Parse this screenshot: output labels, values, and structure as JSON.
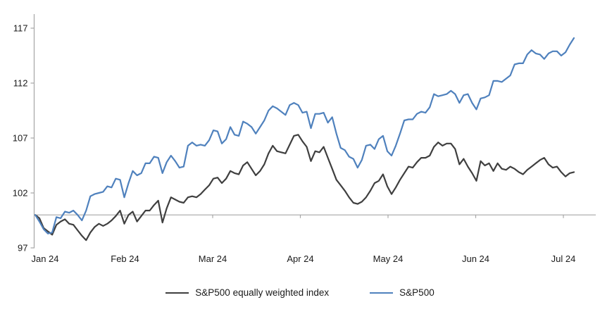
{
  "chart_data": {
    "type": "line",
    "title": "",
    "xlabel": "",
    "ylabel": "",
    "x_tick_labels": [
      "Jan 24",
      "Feb 24",
      "Mar 24",
      "Apr 24",
      "May 24",
      "Jun 24",
      "Jul 24"
    ],
    "y_ticks": [
      97,
      102,
      107,
      112,
      117
    ],
    "ylim": [
      97,
      118
    ],
    "baseline_value": 100,
    "grid": "none (single horizontal axis line at value 100 with month tick marks)",
    "legend_position": "bottom-center",
    "x_description": "Daily values indexed to 100 at start of period, Jan 2024 through early Jul 2024",
    "series": [
      {
        "name": "S&P500 equally weighted index",
        "color": "#3f3f3f",
        "values": [
          100.0,
          99.7,
          98.8,
          98.5,
          98.2,
          99.1,
          99.4,
          99.6,
          99.2,
          99.1,
          98.6,
          98.1,
          97.7,
          98.4,
          98.9,
          99.2,
          99.0,
          99.2,
          99.5,
          99.9,
          100.4,
          99.2,
          100.0,
          100.3,
          99.4,
          99.9,
          100.4,
          100.4,
          100.9,
          101.3,
          99.3,
          100.6,
          101.6,
          101.4,
          101.2,
          101.1,
          101.6,
          101.7,
          101.6,
          101.9,
          102.3,
          102.7,
          103.3,
          103.4,
          102.9,
          103.3,
          104.0,
          103.8,
          103.7,
          104.5,
          104.8,
          104.2,
          103.6,
          104.0,
          104.6,
          105.6,
          106.3,
          105.8,
          105.7,
          105.6,
          106.4,
          107.2,
          107.3,
          106.7,
          106.2,
          104.9,
          105.8,
          105.7,
          106.2,
          105.2,
          104.2,
          103.2,
          102.7,
          102.2,
          101.6,
          101.1,
          101.0,
          101.2,
          101.6,
          102.2,
          102.9,
          103.1,
          103.7,
          102.6,
          101.9,
          102.5,
          103.2,
          103.8,
          104.4,
          104.3,
          104.8,
          105.2,
          105.2,
          105.4,
          106.2,
          106.6,
          106.3,
          106.5,
          106.5,
          106.0,
          104.6,
          105.1,
          104.4,
          103.8,
          103.1,
          104.9,
          104.5,
          104.7,
          104.0,
          104.7,
          104.2,
          104.1,
          104.4,
          104.2,
          103.9,
          103.7,
          104.1,
          104.4,
          104.7,
          105.0,
          105.2,
          104.6,
          104.3,
          104.4,
          103.9,
          103.5,
          103.8,
          103.9
        ]
      },
      {
        "name": "S&P500",
        "color": "#4f81bd",
        "values": [
          100.0,
          99.4,
          98.7,
          98.3,
          98.4,
          99.8,
          99.7,
          100.3,
          100.2,
          100.4,
          100.0,
          99.5,
          100.4,
          101.7,
          101.9,
          102.0,
          102.1,
          102.6,
          102.5,
          103.3,
          103.2,
          101.6,
          102.9,
          104.0,
          103.6,
          103.8,
          104.7,
          104.7,
          105.3,
          105.2,
          103.8,
          104.8,
          105.4,
          104.9,
          104.3,
          104.4,
          106.3,
          106.6,
          106.3,
          106.4,
          106.3,
          106.8,
          107.7,
          107.6,
          106.5,
          106.9,
          108.0,
          107.3,
          107.2,
          108.5,
          108.3,
          108.0,
          107.4,
          108.0,
          108.6,
          109.5,
          109.9,
          109.7,
          109.4,
          109.1,
          110.0,
          110.2,
          110.0,
          109.3,
          109.4,
          107.9,
          109.2,
          109.2,
          109.3,
          108.4,
          108.9,
          107.4,
          106.1,
          105.9,
          105.3,
          105.1,
          104.3,
          105.0,
          106.3,
          106.4,
          106.0,
          106.9,
          107.2,
          105.8,
          105.4,
          106.3,
          107.4,
          108.6,
          108.7,
          108.7,
          109.2,
          109.4,
          109.3,
          109.8,
          111.0,
          110.8,
          110.9,
          111.0,
          111.3,
          111.0,
          110.2,
          110.9,
          111.0,
          110.2,
          109.6,
          110.6,
          110.7,
          110.9,
          112.2,
          112.2,
          112.1,
          112.4,
          112.7,
          113.7,
          113.8,
          113.8,
          114.6,
          115.0,
          114.7,
          114.6,
          114.2,
          114.7,
          114.9,
          114.9,
          114.5,
          114.8,
          115.5,
          116.1
        ]
      }
    ]
  },
  "legend": {
    "item1_label": "S&P500 equally weighted index",
    "item2_label": "S&P500"
  },
  "colors": {
    "axis_line": "#a6a6a6",
    "tick_text": "#1a1a1a",
    "series_equal_weight": "#3f3f3f",
    "series_sp500": "#4f81bd",
    "background": "#ffffff"
  }
}
